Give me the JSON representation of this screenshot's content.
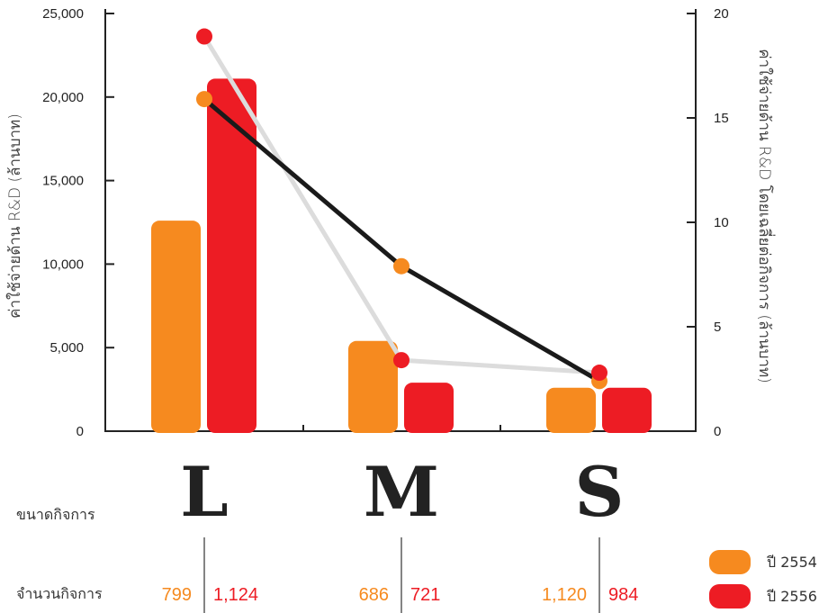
{
  "colors": {
    "y2554": "#f68a1f",
    "y2556": "#ed1c24",
    "line2554": "#1a1a1a",
    "line2556": "#dcdcdc"
  },
  "chart_data": {
    "type": "bar",
    "categories": [
      "L",
      "M",
      "S"
    ],
    "series": [
      {
        "name": "ปี 2554",
        "kind": "bar",
        "axis": "left",
        "values": [
          12600,
          5400,
          2600
        ]
      },
      {
        "name": "ปี 2556",
        "kind": "bar",
        "axis": "left",
        "values": [
          21100,
          2900,
          2600
        ]
      },
      {
        "name": "ปี 2554",
        "kind": "line",
        "axis": "right",
        "values": [
          15.9,
          7.9,
          2.4
        ]
      },
      {
        "name": "ปี 2556",
        "kind": "line",
        "axis": "right",
        "values": [
          18.9,
          3.4,
          2.8
        ]
      }
    ],
    "ylabel": "ค่าใช้จ่ายด้าน R&D (ล้านบาท)",
    "y2label": "ค่าใช้จ่ายด้าน R&D โดยเฉลี่ยต่อกิจการ (ล้านบาท)",
    "ylim": [
      0,
      25000
    ],
    "y2lim": [
      0,
      20
    ],
    "yticks": [
      "0",
      "5,000",
      "10,000",
      "15,000",
      "20,000",
      "25,000"
    ],
    "y2ticks": [
      "0",
      "5",
      "10",
      "15",
      "20"
    ],
    "xlabel": "ขนาดกิจการ",
    "count_label": "จำนวนกิจการ",
    "counts_2554": [
      "799",
      "686",
      "1,120"
    ],
    "counts_2556": [
      "1,124",
      "721",
      "984"
    ],
    "legend": [
      "ปี 2554",
      "ปี 2556"
    ],
    "legend_position": "bottom-right"
  }
}
